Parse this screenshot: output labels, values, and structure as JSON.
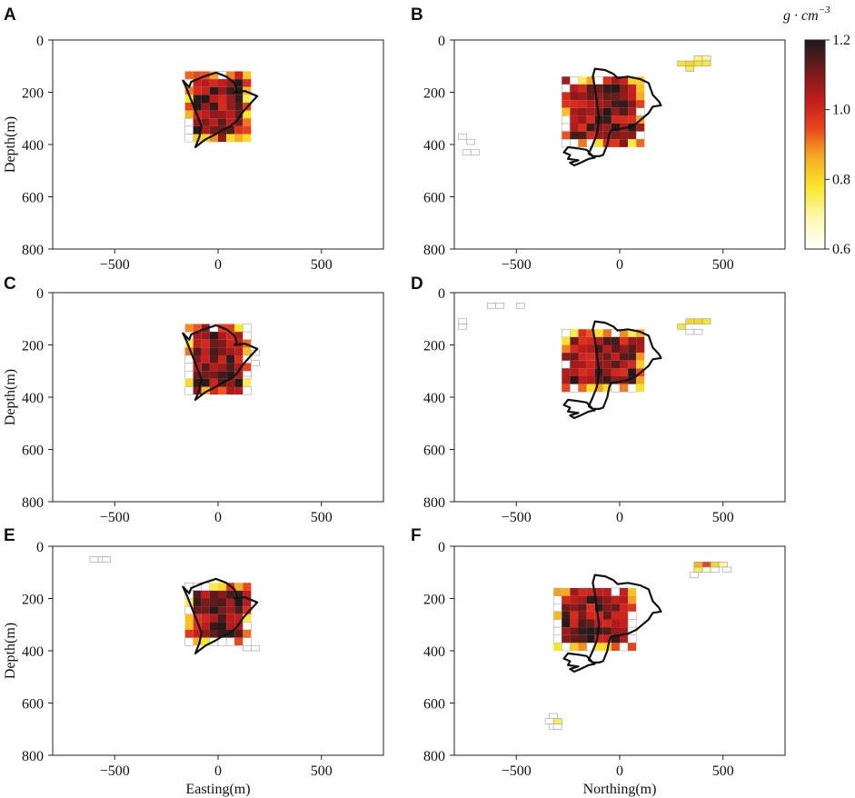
{
  "chart_data": {
    "type": "heatmap",
    "title": "",
    "colorbar": {
      "label": "g · cm",
      "label_superscript": "−3",
      "min": 0.6,
      "max": 1.2,
      "ticks": [
        0.6,
        0.8,
        1.0,
        1.2
      ],
      "tick_labels": [
        "0.6",
        "0.8",
        "1.0",
        "1.2"
      ],
      "colormap": "hot_r",
      "colors": [
        "#ffffff",
        "#fff8b0",
        "#f8e62a",
        "#f5a623",
        "#e8441d",
        "#c81e1e",
        "#8a1a1a",
        "#4a1c1c",
        "#1f1a1a"
      ]
    },
    "cell_size_m": 40,
    "panels": [
      {
        "letter": "A",
        "xlabel": "",
        "ylabel": "Depth(m)",
        "xlim": [
          -800,
          800
        ],
        "ylim": [
          0,
          800
        ],
        "xticks": [
          -500,
          0,
          500
        ],
        "xtick_labels": [
          "−500",
          "0",
          "500"
        ],
        "yticks": [
          0,
          200,
          400,
          600,
          800
        ],
        "ytick_labels": [
          "0",
          "200",
          "400",
          "600",
          "800"
        ],
        "blocks": [
          {
            "x0": -160,
            "x1": 160,
            "y0": 120,
            "y1": 380
          }
        ],
        "outline": "easting",
        "extras": []
      },
      {
        "letter": "B",
        "xlabel": "",
        "ylabel": "",
        "xlim": [
          -800,
          800
        ],
        "ylim": [
          0,
          800
        ],
        "xticks": [
          -500,
          0,
          500
        ],
        "xtick_labels": [
          "−500",
          "0",
          "500"
        ],
        "yticks": [
          0,
          200,
          400,
          600,
          800
        ],
        "ytick_labels": [
          "0",
          "200",
          "400",
          "600",
          "800"
        ],
        "blocks": [
          {
            "x0": -280,
            "x1": 120,
            "y0": 140,
            "y1": 400
          }
        ],
        "outline": "northing",
        "extras": [
          {
            "x": 280,
            "y": 80,
            "v": 0.78
          },
          {
            "x": 320,
            "y": 80,
            "v": 0.8
          },
          {
            "x": 360,
            "y": 80,
            "v": 0.78
          },
          {
            "x": 320,
            "y": 100,
            "v": 0.75
          },
          {
            "x": 360,
            "y": 60,
            "v": 0.72
          },
          {
            "x": 400,
            "y": 60,
            "v": 0.7
          },
          {
            "x": 400,
            "y": 80,
            "v": 0.76
          },
          {
            "x": -780,
            "y": 360,
            "v": 0.6
          },
          {
            "x": -740,
            "y": 380,
            "v": 0.6
          },
          {
            "x": -760,
            "y": 420,
            "v": 0.6
          },
          {
            "x": -720,
            "y": 420,
            "v": 0.6
          }
        ]
      },
      {
        "letter": "C",
        "xlabel": "",
        "ylabel": "Depth(m)",
        "xlim": [
          -800,
          800
        ],
        "ylim": [
          0,
          800
        ],
        "xticks": [
          -500,
          0,
          500
        ],
        "xtick_labels": [
          "−500",
          "0",
          "500"
        ],
        "yticks": [
          0,
          200,
          400,
          600,
          800
        ],
        "ytick_labels": [
          "0",
          "200",
          "400",
          "600",
          "800"
        ],
        "blocks": [
          {
            "x0": -160,
            "x1": 160,
            "y0": 120,
            "y1": 380
          }
        ],
        "outline": "easting",
        "extras": [
          {
            "x": 160,
            "y": 220,
            "v": 0.6
          },
          {
            "x": 160,
            "y": 260,
            "v": 0.6
          },
          {
            "x": 120,
            "y": 300,
            "v": 0.6
          }
        ]
      },
      {
        "letter": "D",
        "xlabel": "",
        "ylabel": "",
        "xlim": [
          -800,
          800
        ],
        "ylim": [
          0,
          800
        ],
        "xticks": [
          -500,
          0,
          500
        ],
        "xtick_labels": [
          "−500",
          "0",
          "500"
        ],
        "yticks": [
          0,
          200,
          400,
          600,
          800
        ],
        "ytick_labels": [
          "0",
          "200",
          "400",
          "600",
          "800"
        ],
        "blocks": [
          {
            "x0": -280,
            "x1": 120,
            "y0": 140,
            "y1": 380
          }
        ],
        "outline": "northing",
        "extras": [
          {
            "x": 280,
            "y": 120,
            "v": 0.78
          },
          {
            "x": 320,
            "y": 100,
            "v": 0.8
          },
          {
            "x": 360,
            "y": 100,
            "v": 0.8
          },
          {
            "x": 400,
            "y": 100,
            "v": 0.78
          },
          {
            "x": 320,
            "y": 140,
            "v": 0.6
          },
          {
            "x": 360,
            "y": 140,
            "v": 0.6
          },
          {
            "x": -780,
            "y": 100,
            "v": 0.6
          },
          {
            "x": -780,
            "y": 120,
            "v": 0.6
          },
          {
            "x": -640,
            "y": 40,
            "v": 0.6
          },
          {
            "x": -600,
            "y": 40,
            "v": 0.6
          },
          {
            "x": -500,
            "y": 40,
            "v": 0.6
          }
        ]
      },
      {
        "letter": "E",
        "xlabel": "Easting(m)",
        "ylabel": "Depth(m)",
        "xlim": [
          -800,
          800
        ],
        "ylim": [
          0,
          800
        ],
        "xticks": [
          -500,
          0,
          500
        ],
        "xtick_labels": [
          "−500",
          "0",
          "500"
        ],
        "yticks": [
          0,
          200,
          400,
          600,
          800
        ],
        "ytick_labels": [
          "0",
          "200",
          "400",
          "600",
          "800"
        ],
        "blocks": [
          {
            "x0": -160,
            "x1": 160,
            "y0": 140,
            "y1": 380
          }
        ],
        "outline": "easting",
        "extras": [
          {
            "x": -620,
            "y": 40,
            "v": 0.6
          },
          {
            "x": -580,
            "y": 40,
            "v": 0.6
          },
          {
            "x": -560,
            "y": 40,
            "v": 0.6
          },
          {
            "x": 120,
            "y": 380,
            "v": 0.6
          },
          {
            "x": 160,
            "y": 380,
            "v": 0.6
          }
        ]
      },
      {
        "letter": "F",
        "xlabel": "Northing(m)",
        "ylabel": "",
        "xlim": [
          -800,
          800
        ],
        "ylim": [
          0,
          800
        ],
        "xticks": [
          -500,
          0,
          500
        ],
        "xtick_labels": [
          "−500",
          "0",
          "500"
        ],
        "yticks": [
          0,
          200,
          400,
          600,
          800
        ],
        "ytick_labels": [
          "0",
          "200",
          "400",
          "600",
          "800"
        ],
        "blocks": [
          {
            "x0": -320,
            "x1": 80,
            "y0": 160,
            "y1": 380
          }
        ],
        "outline": "northing",
        "extras": [
          {
            "x": 360,
            "y": 60,
            "v": 0.85
          },
          {
            "x": 400,
            "y": 60,
            "v": 0.95
          },
          {
            "x": 440,
            "y": 60,
            "v": 0.8
          },
          {
            "x": 480,
            "y": 60,
            "v": 0.7
          },
          {
            "x": 360,
            "y": 80,
            "v": 0.75
          },
          {
            "x": 400,
            "y": 80,
            "v": 0.65
          },
          {
            "x": 440,
            "y": 80,
            "v": 0.6
          },
          {
            "x": 500,
            "y": 80,
            "v": 0.6
          },
          {
            "x": 340,
            "y": 100,
            "v": 0.6
          },
          {
            "x": -340,
            "y": 640,
            "v": 0.6
          },
          {
            "x": -360,
            "y": 660,
            "v": 0.6
          },
          {
            "x": -320,
            "y": 660,
            "v": 0.75
          },
          {
            "x": -340,
            "y": 680,
            "v": 0.6
          },
          {
            "x": -320,
            "y": 680,
            "v": 0.6
          }
        ]
      }
    ]
  }
}
